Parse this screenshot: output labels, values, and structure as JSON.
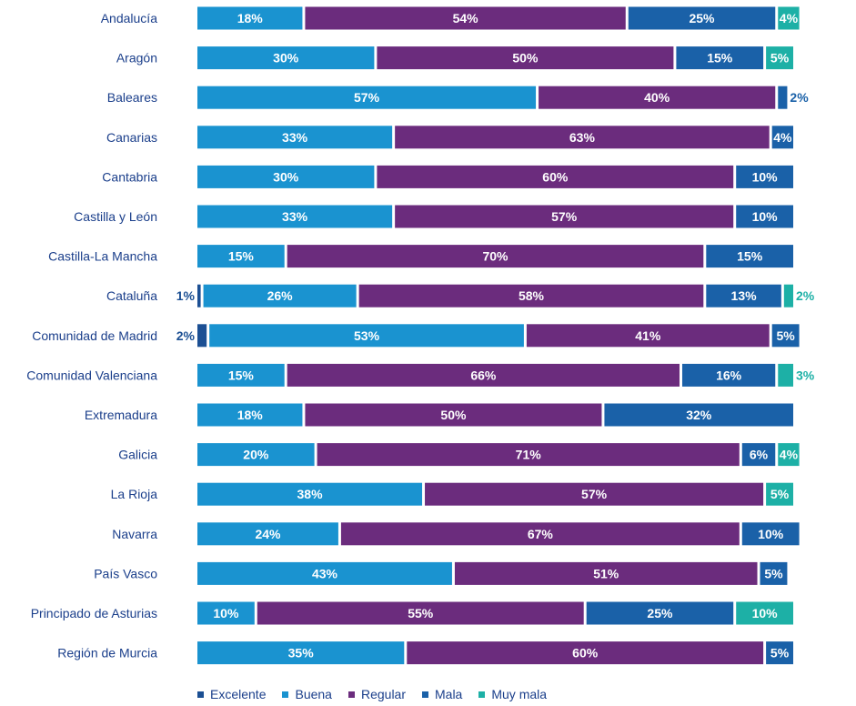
{
  "chart_data": {
    "type": "bar",
    "orientation": "horizontal",
    "stacked": true,
    "categories": [
      "Andalucía",
      "Aragón",
      "Baleares",
      "Canarias",
      "Cantabria",
      "Castilla y León",
      "Castilla-La Mancha",
      "Cataluña",
      "Comunidad de Madrid",
      "Comunidad Valenciana",
      "Extremadura",
      "Galicia",
      "La Rioja",
      "Navarra",
      "País Vasco",
      "Principado de Asturias",
      "Región de Murcia"
    ],
    "series": [
      {
        "name": "Excelente",
        "color": "#1b4f93",
        "values": [
          0,
          0,
          0,
          0,
          0,
          0,
          0,
          1,
          2,
          0,
          0,
          0,
          0,
          0,
          0,
          0,
          0
        ]
      },
      {
        "name": "Buena",
        "color": "#1a93d0",
        "values": [
          18,
          30,
          57,
          33,
          30,
          33,
          15,
          26,
          53,
          15,
          18,
          20,
          38,
          24,
          43,
          10,
          35
        ]
      },
      {
        "name": "Regular",
        "color": "#6b2c7d",
        "values": [
          54,
          50,
          40,
          63,
          60,
          57,
          70,
          58,
          41,
          66,
          50,
          71,
          57,
          67,
          51,
          55,
          60
        ]
      },
      {
        "name": "Mala",
        "color": "#1a61a8",
        "values": [
          25,
          15,
          2,
          4,
          10,
          10,
          15,
          13,
          5,
          16,
          32,
          6,
          0,
          10,
          5,
          25,
          5
        ]
      },
      {
        "name": "Muy mala",
        "color": "#1db0a6",
        "values": [
          4,
          5,
          0,
          0,
          0,
          0,
          0,
          2,
          0,
          3,
          0,
          4,
          5,
          0,
          0,
          10,
          0
        ]
      }
    ],
    "value_suffix": "%",
    "xlim": [
      0,
      100
    ],
    "legend_position": "bottom",
    "title": "",
    "xlabel": "",
    "ylabel": ""
  }
}
